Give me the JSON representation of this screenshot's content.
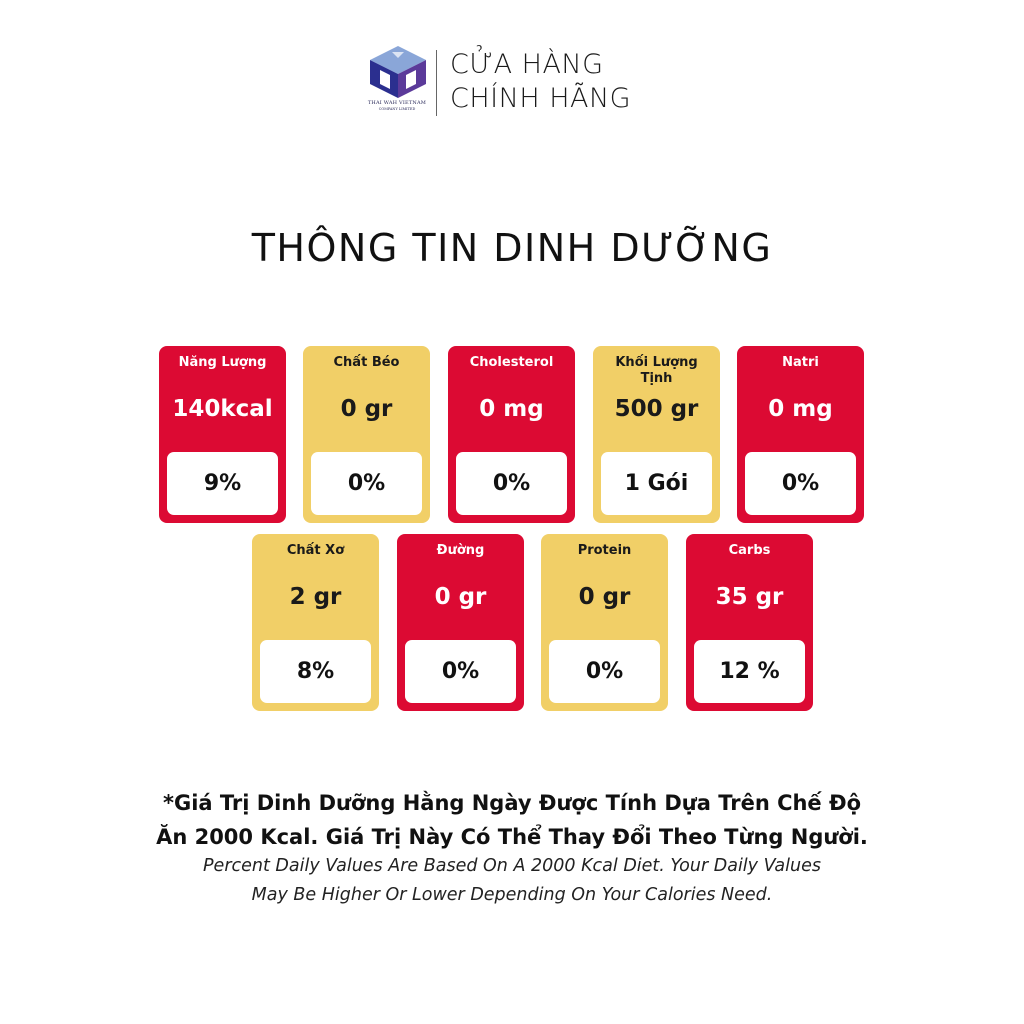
{
  "brand": {
    "logo_icon": "thai-wah-logo-icon",
    "logo_name": "THAI WAH VIETNAM",
    "logo_sub": "COMPANY LIMITED",
    "line1": "CỬA HÀNG",
    "line2": "CHÍNH HÃNG"
  },
  "title": "THÔNG TIN DINH DƯỠNG",
  "colors": {
    "red": "#dc0a33",
    "yellow": "#f1cf67"
  },
  "nutrients": [
    {
      "label": "Năng Lượng",
      "value": "140kcal",
      "percent": "9%",
      "color": "red"
    },
    {
      "label": "Chất Béo",
      "value": "0 gr",
      "percent": "0%",
      "color": "yellow"
    },
    {
      "label": "Cholesterol",
      "value": "0 mg",
      "percent": "0%",
      "color": "red"
    },
    {
      "label": "Khối Lượng Tịnh",
      "value": "500 gr",
      "percent": "1 Gói",
      "color": "yellow"
    },
    {
      "label": "Natri",
      "value": "0 mg",
      "percent": "0%",
      "color": "red"
    },
    {
      "label": "Chất Xơ",
      "value": "2 gr",
      "percent": "8%",
      "color": "yellow"
    },
    {
      "label": "Đường",
      "value": "0 gr",
      "percent": "0%",
      "color": "red"
    },
    {
      "label": "Protein",
      "value": "0 gr",
      "percent": "0%",
      "color": "yellow"
    },
    {
      "label": "Carbs",
      "value": "35 gr",
      "percent": "12 %",
      "color": "red"
    }
  ],
  "footnote": {
    "vi_line1": "*Giá Trị Dinh Dưỡng Hằng Ngày Được Tính Dựa Trên Chế Độ",
    "vi_line2": "Ăn 2000 Kcal. Giá Trị Này Có Thể Thay Đổi Theo Từng Người.",
    "en_line1": "Percent Daily Values Are Based On A 2000 Kcal Diet. Your Daily Values",
    "en_line2": "May Be Higher Or Lower Depending On Your Calories Need."
  }
}
